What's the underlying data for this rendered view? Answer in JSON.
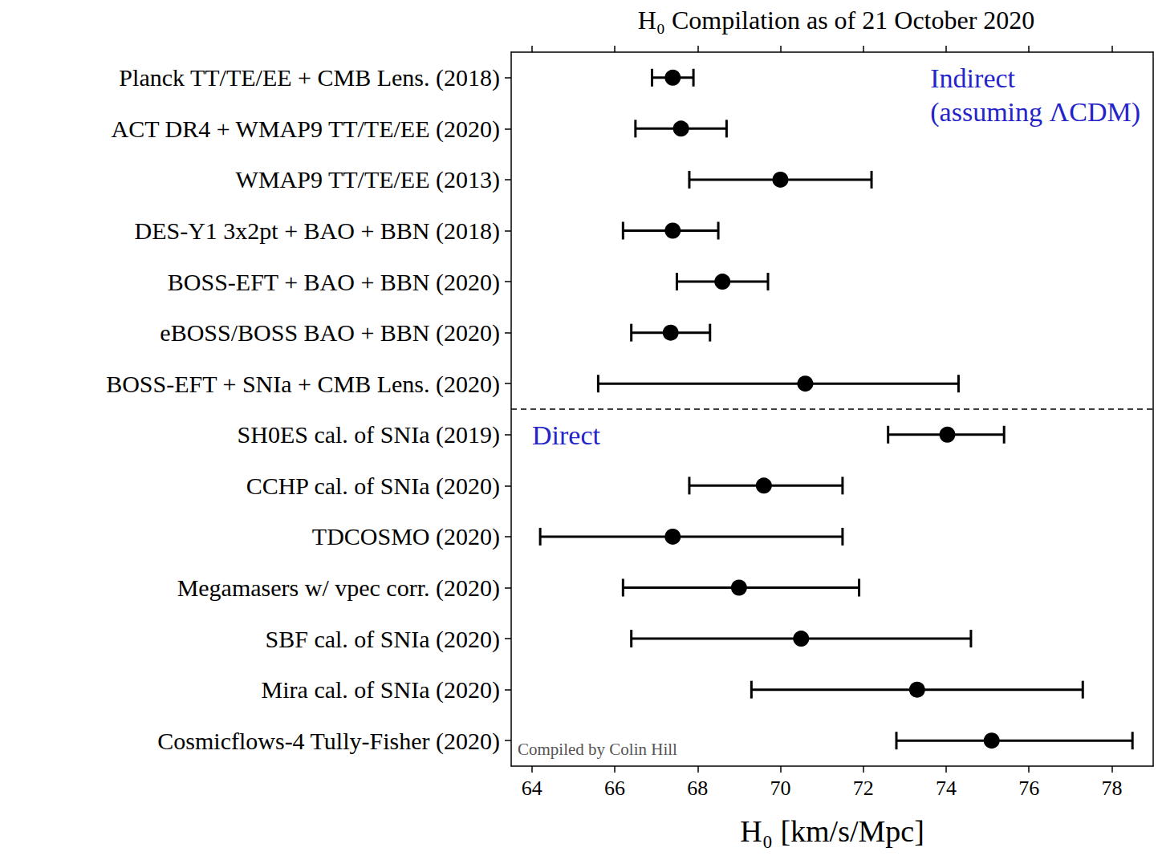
{
  "chart_data": {
    "type": "scatter",
    "title": "H₀ Compilation as of 21 October 2020",
    "x_label": "H₀ [km/s/Mpc]",
    "orientation": "horizontal",
    "categories": [
      "Planck TT/TE/EE + CMB Lens. (2018)",
      "ACT DR4 + WMAP9 TT/TE/EE (2020)",
      "WMAP9 TT/TE/EE (2013)",
      "DES-Y1 3x2pt + BAO + BBN (2018)",
      "BOSS-EFT + BAO + BBN (2020)",
      "eBOSS/BOSS BAO + BBN (2020)",
      "BOSS-EFT + SNIa + CMB Lens. (2020)",
      "SH0ES cal. of SNIa (2019)",
      "CCHP cal. of SNIa (2020)",
      "TDCOSMO (2020)",
      "Megamasers w/ vpec corr. (2020)",
      "SBF cal. of SNIa (2020)",
      "Mira cal. of SNIa (2020)",
      "Cosmicflows-4 Tully-Fisher (2020)"
    ],
    "values": [
      67.4,
      67.6,
      70.0,
      67.4,
      68.6,
      67.35,
      70.6,
      74.03,
      69.6,
      67.4,
      69.0,
      70.5,
      73.3,
      75.1
    ],
    "lower": [
      66.9,
      66.5,
      67.8,
      66.2,
      67.5,
      66.4,
      65.6,
      72.6,
      67.8,
      64.2,
      66.2,
      66.4,
      69.3,
      72.8
    ],
    "upper": [
      67.9,
      68.7,
      72.2,
      68.5,
      69.7,
      68.3,
      74.3,
      75.4,
      71.5,
      71.5,
      71.9,
      74.6,
      77.3,
      78.5
    ],
    "group": [
      "Indirect (assuming ΛCDM)",
      "Indirect (assuming ΛCDM)",
      "Indirect (assuming ΛCDM)",
      "Indirect (assuming ΛCDM)",
      "Indirect (assuming ΛCDM)",
      "Indirect (assuming ΛCDM)",
      "Indirect (assuming ΛCDM)",
      "Direct",
      "Direct",
      "Direct",
      "Direct",
      "Direct",
      "Direct",
      "Direct"
    ],
    "annotations": [
      "Compiled by Colin Hill"
    ],
    "color": "#000000",
    "marker": "circle",
    "xlim": [
      63.5,
      79
    ],
    "xticks": [
      64,
      66,
      68,
      70,
      72,
      74,
      76,
      78
    ],
    "grid": false
  }
}
